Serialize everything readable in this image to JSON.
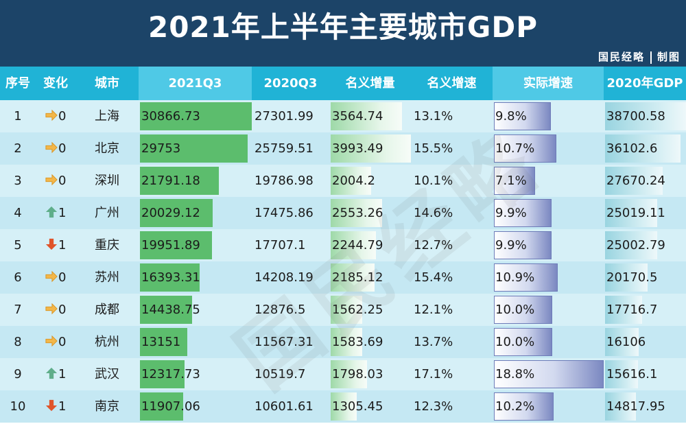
{
  "title": "2021年上半年主要城市GDP",
  "credit": {
    "left": "国民经略",
    "right": "制图"
  },
  "watermark": "国民经略",
  "headers": [
    "序号",
    "变化",
    "城市",
    "2021Q3",
    "2020Q3",
    "名义增量",
    "名义增速",
    "实际增速",
    "2020年GDP"
  ],
  "colors": {
    "header_bg": "#20b3d6",
    "title_bg": "#1c4468",
    "bar_green": "#5cbd6d",
    "row_light": "#d6f0f7",
    "row_dark": "#c5e8f3",
    "arrow_up": "#5fae8a",
    "arrow_down": "#e0542a",
    "arrow_flat": "#f2b74a"
  },
  "chart_data": {
    "type": "table",
    "title": "2021年上半年主要城市GDP",
    "columns": [
      "序号",
      "变化",
      "城市",
      "2021Q3",
      "2020Q3",
      "名义增量",
      "名义增速",
      "实际增速",
      "2020年GDP"
    ],
    "rows": [
      {
        "rank": "1",
        "change_dir": "flat",
        "change": "0",
        "city": "上海",
        "q3_2021": "30866.73",
        "q3_2020": "27301.99",
        "increase": "3564.74",
        "nominal": "13.1%",
        "real": "9.8%",
        "gdp_2020": "38700.58"
      },
      {
        "rank": "2",
        "change_dir": "flat",
        "change": "0",
        "city": "北京",
        "q3_2021": "29753",
        "q3_2020": "25759.51",
        "increase": "3993.49",
        "nominal": "15.5%",
        "real": "10.7%",
        "gdp_2020": "36102.6"
      },
      {
        "rank": "3",
        "change_dir": "flat",
        "change": "0",
        "city": "深圳",
        "q3_2021": "21791.18",
        "q3_2020": "19786.98",
        "increase": "2004.2",
        "nominal": "10.1%",
        "real": "7.1%",
        "gdp_2020": "27670.24"
      },
      {
        "rank": "4",
        "change_dir": "up",
        "change": "1",
        "city": "广州",
        "q3_2021": "20029.12",
        "q3_2020": "17475.86",
        "increase": "2553.26",
        "nominal": "14.6%",
        "real": "9.9%",
        "gdp_2020": "25019.11"
      },
      {
        "rank": "5",
        "change_dir": "down",
        "change": "1",
        "city": "重庆",
        "q3_2021": "19951.89",
        "q3_2020": "17707.1",
        "increase": "2244.79",
        "nominal": "12.7%",
        "real": "9.9%",
        "gdp_2020": "25002.79"
      },
      {
        "rank": "6",
        "change_dir": "flat",
        "change": "0",
        "city": "苏州",
        "q3_2021": "16393.31",
        "q3_2020": "14208.19",
        "increase": "2185.12",
        "nominal": "15.4%",
        "real": "10.9%",
        "gdp_2020": "20170.5"
      },
      {
        "rank": "7",
        "change_dir": "flat",
        "change": "0",
        "city": "成都",
        "q3_2021": "14438.75",
        "q3_2020": "12876.5",
        "increase": "1562.25",
        "nominal": "12.1%",
        "real": "10.0%",
        "gdp_2020": "17716.7"
      },
      {
        "rank": "8",
        "change_dir": "flat",
        "change": "0",
        "city": "杭州",
        "q3_2021": "13151",
        "q3_2020": "11567.31",
        "increase": "1583.69",
        "nominal": "13.7%",
        "real": "10.0%",
        "gdp_2020": "16106"
      },
      {
        "rank": "9",
        "change_dir": "up",
        "change": "1",
        "city": "武汉",
        "q3_2021": "12317.73",
        "q3_2020": "10519.7",
        "increase": "1798.03",
        "nominal": "17.1%",
        "real": "18.8%",
        "gdp_2020": "15616.1"
      },
      {
        "rank": "10",
        "change_dir": "down",
        "change": "1",
        "city": "南京",
        "q3_2021": "11907.06",
        "q3_2020": "10601.61",
        "increase": "1305.45",
        "nominal": "12.3%",
        "real": "10.2%",
        "gdp_2020": "14817.95"
      }
    ]
  }
}
